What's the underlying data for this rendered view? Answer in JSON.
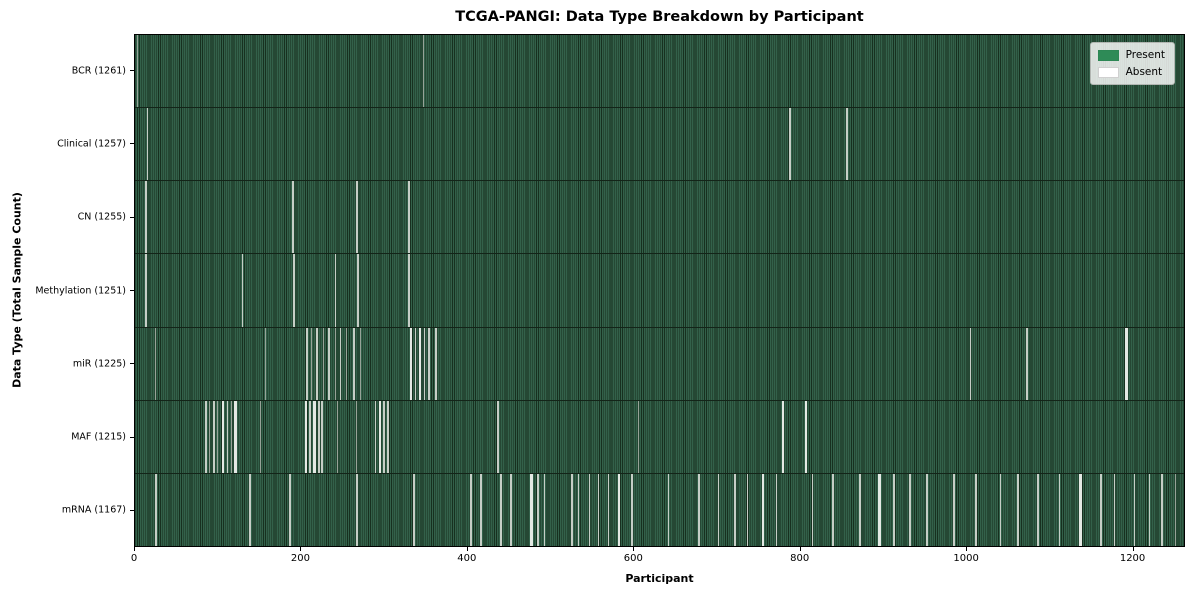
{
  "legend": {
    "items": [
      {
        "label": "Present",
        "color": "#2e8b57"
      },
      {
        "label": "Absent",
        "color": "#ffffff"
      }
    ]
  },
  "chart_data": {
    "type": "heatmap",
    "title": "TCGA-PANGI: Data Type Breakdown by Participant",
    "xlabel": "Participant",
    "ylabel": "Data Type (Total Sample Count)",
    "x_range": [
      0,
      1263
    ],
    "x_ticks": [
      {
        "pos": 0,
        "label": "0"
      },
      {
        "pos": 200,
        "label": "200"
      },
      {
        "pos": 400,
        "label": "400"
      },
      {
        "pos": 600,
        "label": "600"
      },
      {
        "pos": 800,
        "label": "800"
      },
      {
        "pos": 1000,
        "label": "1000"
      },
      {
        "pos": 1200,
        "label": "1200"
      }
    ],
    "grid": false,
    "legend_position": "upper right",
    "legend_entries": [
      "Present",
      "Absent"
    ],
    "colors": {
      "present": "#2e8b57",
      "absent": "#ffffff",
      "bar_edge": "#17301f"
    },
    "rows": [
      {
        "label": "BCR (1261)",
        "data_type": "BCR",
        "total_samples": 1261,
        "absent_segments": [
          [
            2,
            1
          ],
          [
            346,
            1
          ]
        ]
      },
      {
        "label": "Clinical (1257)",
        "data_type": "Clinical",
        "total_samples": 1257,
        "absent_segments": [
          [
            14,
            2
          ],
          [
            786,
            2
          ],
          [
            855,
            2
          ]
        ]
      },
      {
        "label": "CN (1255)",
        "data_type": "CN",
        "total_samples": 1255,
        "absent_segments": [
          [
            12,
            2
          ],
          [
            189,
            2
          ],
          [
            266,
            2
          ],
          [
            328,
            2
          ]
        ]
      },
      {
        "label": "Methylation (1251)",
        "data_type": "Methylation",
        "total_samples": 1251,
        "absent_segments": [
          [
            12,
            2
          ],
          [
            128,
            2
          ],
          [
            190,
            2
          ],
          [
            240,
            2
          ],
          [
            267,
            2
          ],
          [
            328,
            2
          ]
        ]
      },
      {
        "label": "miR (1225)",
        "data_type": "miR",
        "total_samples": 1225,
        "absent_segments": [
          [
            24,
            1
          ],
          [
            156,
            1
          ],
          [
            206,
            2
          ],
          [
            212,
            1
          ],
          [
            218,
            2
          ],
          [
            226,
            1
          ],
          [
            232,
            2
          ],
          [
            240,
            1
          ],
          [
            246,
            2
          ],
          [
            254,
            1
          ],
          [
            262,
            2
          ],
          [
            270,
            1
          ],
          [
            330,
            3
          ],
          [
            336,
            2
          ],
          [
            341,
            3
          ],
          [
            347,
            2
          ],
          [
            352,
            2
          ],
          [
            361,
            2
          ],
          [
            1003,
            2
          ],
          [
            1071,
            2
          ],
          [
            1190,
            3
          ]
        ]
      },
      {
        "label": "MAF (1215)",
        "data_type": "MAF",
        "total_samples": 1215,
        "absent_segments": [
          [
            84,
            2
          ],
          [
            89,
            1
          ],
          [
            94,
            2
          ],
          [
            99,
            1
          ],
          [
            104,
            3
          ],
          [
            110,
            2
          ],
          [
            115,
            1
          ],
          [
            119,
            3
          ],
          [
            150,
            1
          ],
          [
            204,
            3
          ],
          [
            209,
            2
          ],
          [
            214,
            3
          ],
          [
            220,
            2
          ],
          [
            224,
            2
          ],
          [
            243,
            1
          ],
          [
            266,
            1
          ],
          [
            288,
            2
          ],
          [
            293,
            3
          ],
          [
            298,
            2
          ],
          [
            303,
            2
          ],
          [
            435,
            2
          ],
          [
            604,
            1
          ],
          [
            777,
            3
          ],
          [
            805,
            3
          ]
        ]
      },
      {
        "label": "mRNA (1167)",
        "data_type": "mRNA",
        "total_samples": 1167,
        "absent_segments": [
          [
            24,
            2
          ],
          [
            137,
            2
          ],
          [
            185,
            2
          ],
          [
            266,
            2
          ],
          [
            334,
            2
          ],
          [
            403,
            2
          ],
          [
            415,
            2
          ],
          [
            439,
            2
          ],
          [
            451,
            2
          ],
          [
            475,
            3
          ],
          [
            483,
            2
          ],
          [
            491,
            2
          ],
          [
            524,
            2
          ],
          [
            532,
            2
          ],
          [
            545,
            2
          ],
          [
            556,
            2
          ],
          [
            568,
            2
          ],
          [
            580,
            3
          ],
          [
            596,
            2
          ],
          [
            640,
            2
          ],
          [
            677,
            2
          ],
          [
            700,
            2
          ],
          [
            720,
            2
          ],
          [
            735,
            2
          ],
          [
            753,
            3
          ],
          [
            770,
            2
          ],
          [
            813,
            2
          ],
          [
            838,
            2
          ],
          [
            870,
            2
          ],
          [
            893,
            3
          ],
          [
            911,
            2
          ],
          [
            930,
            2
          ],
          [
            951,
            2
          ],
          [
            983,
            2
          ],
          [
            1010,
            2
          ],
          [
            1039,
            2
          ],
          [
            1060,
            2
          ],
          [
            1084,
            2
          ],
          [
            1110,
            2
          ],
          [
            1135,
            3
          ],
          [
            1160,
            2
          ],
          [
            1176,
            2
          ],
          [
            1200,
            2
          ],
          [
            1218,
            2
          ],
          [
            1233,
            2
          ],
          [
            1250,
            1
          ]
        ]
      }
    ]
  }
}
